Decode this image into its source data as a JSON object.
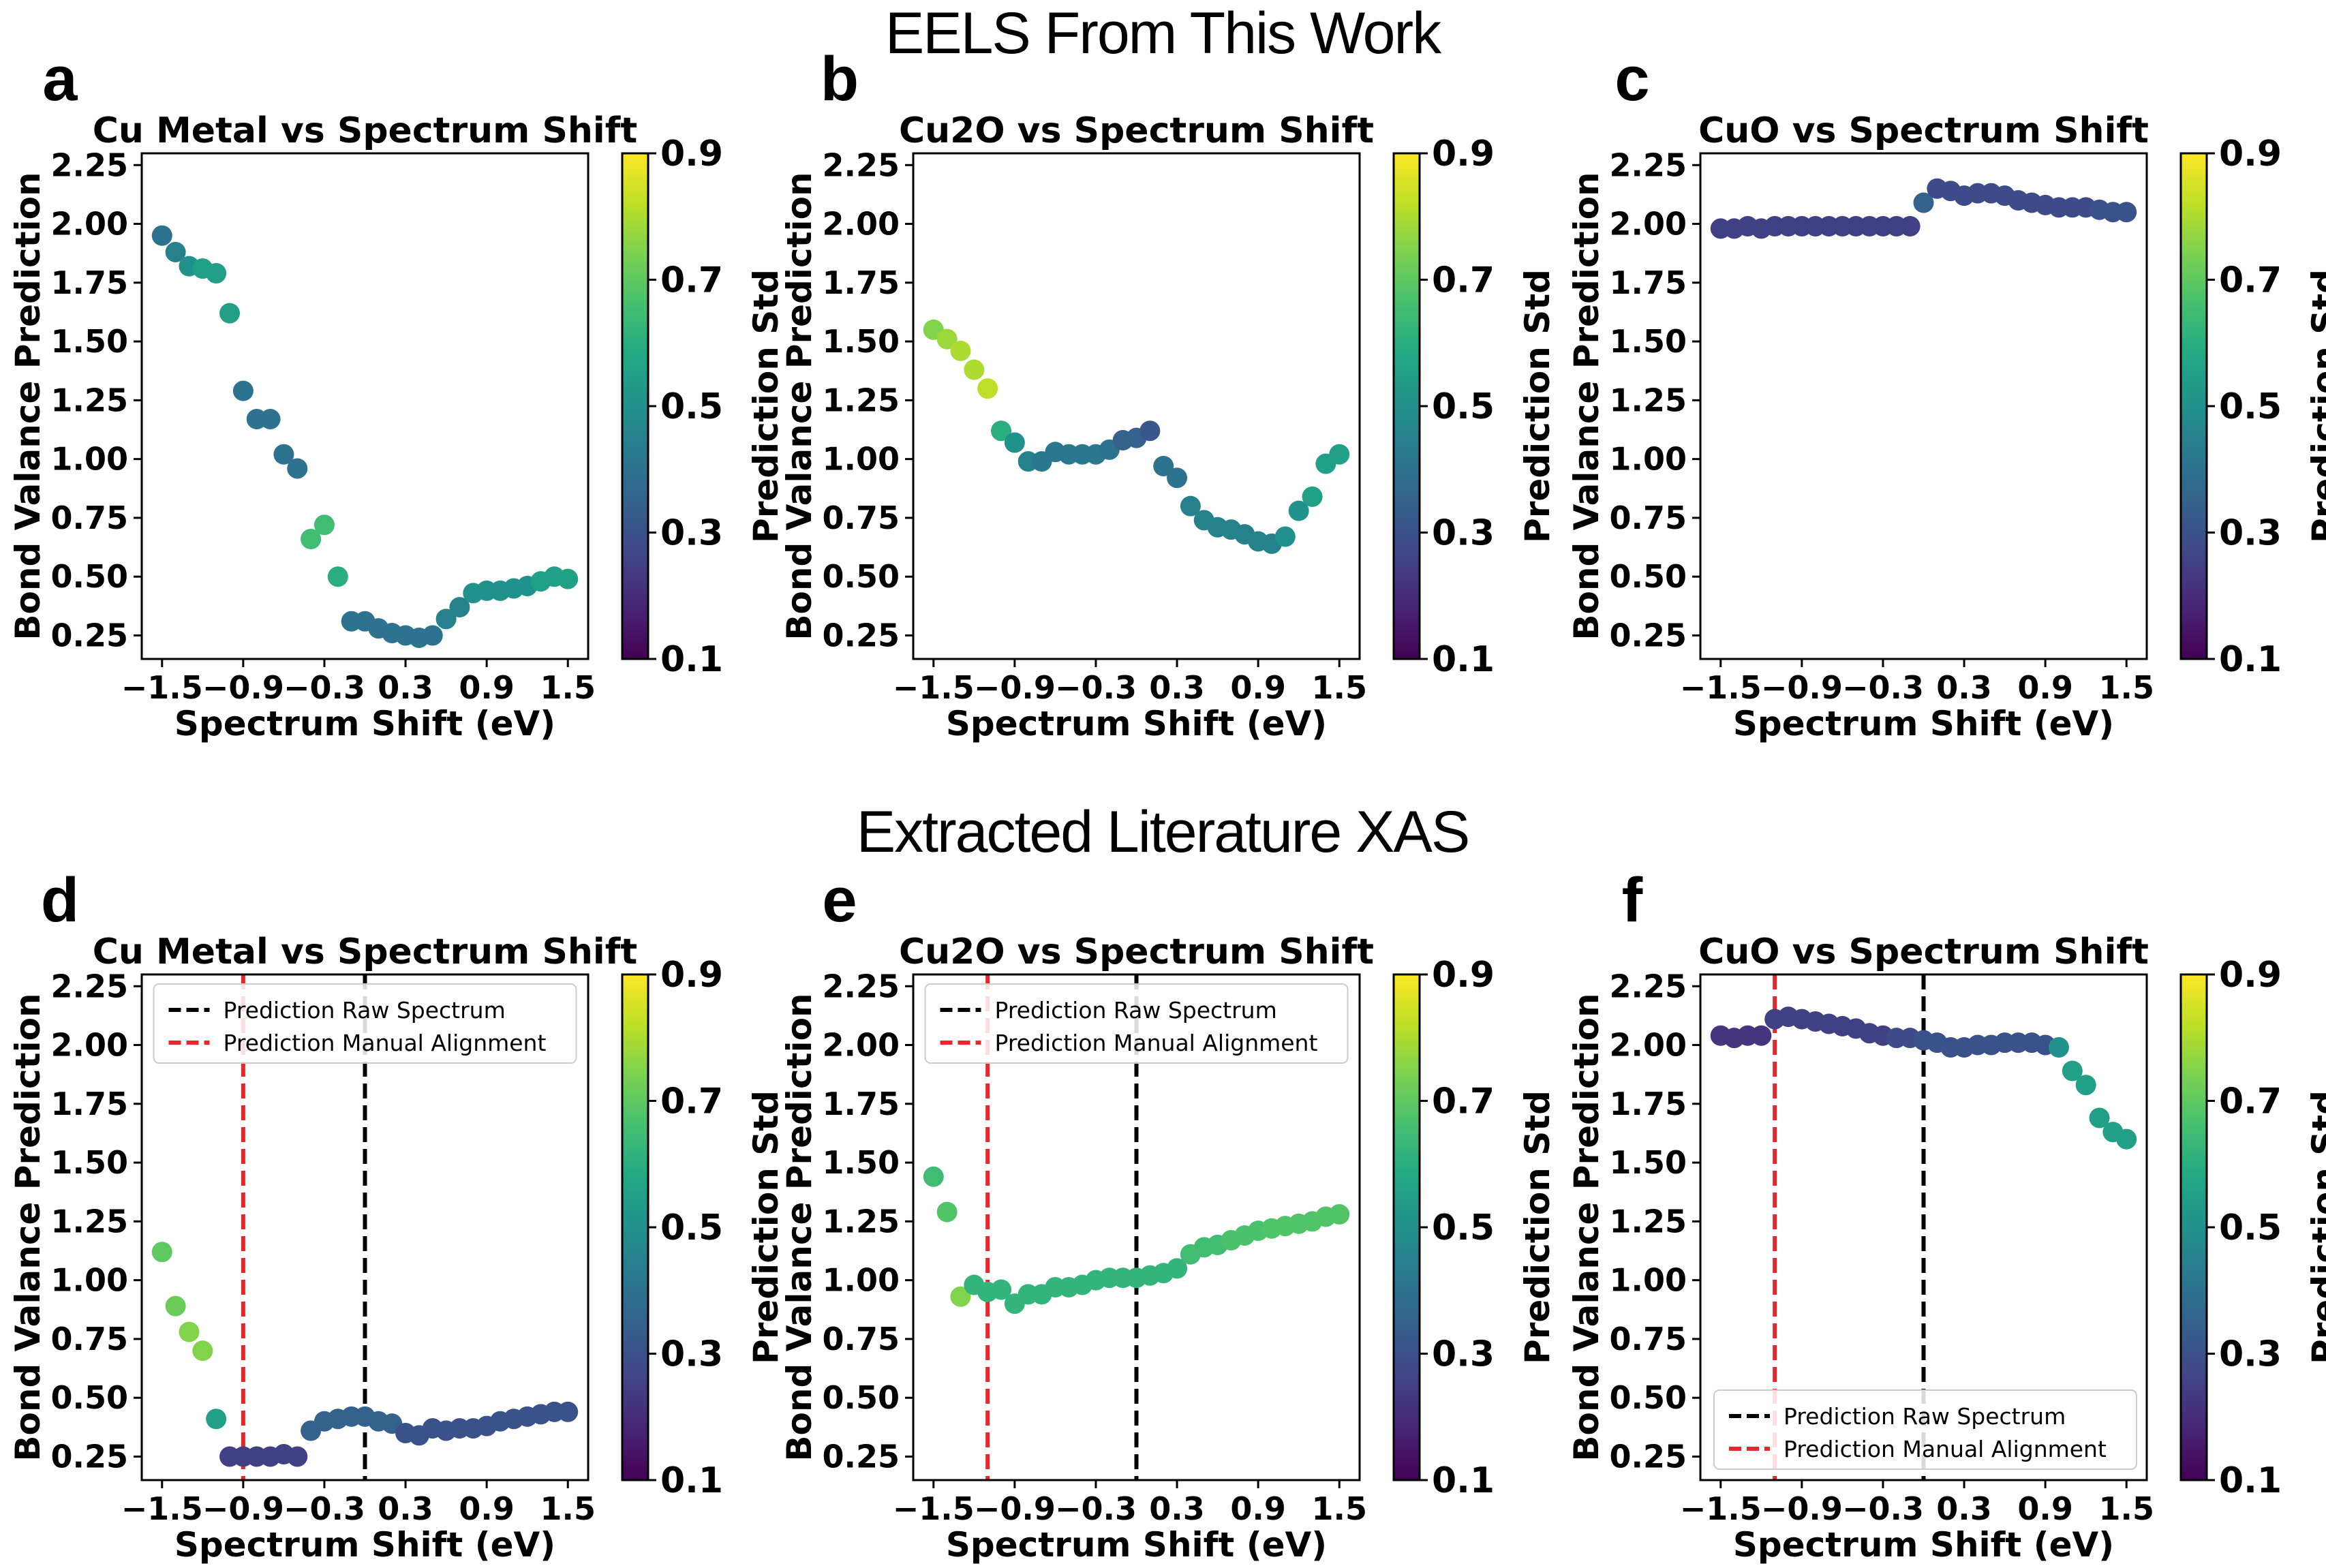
{
  "sections": [
    {
      "title": "EELS From This Work"
    },
    {
      "title": "Extracted Literature XAS"
    }
  ],
  "colorbar": {
    "label": "Prediction Std",
    "ticks": [
      "0.1",
      "0.3",
      "0.5",
      "0.7",
      "0.9"
    ],
    "range": [
      0.1,
      0.9
    ],
    "colormap": "viridis"
  },
  "legend": {
    "raw": {
      "label": "Prediction Raw Spectrum",
      "color": "#000000"
    },
    "manual": {
      "label": "Prediction Manual Alignment",
      "color": "#e8262b"
    }
  },
  "chart_data": [
    {
      "panel": "a",
      "type": "scatter",
      "title": "Cu Metal vs Spectrum Shift",
      "xlabel": "Spectrum Shift (eV)",
      "ylabel": "Bond Valance Prediction",
      "xlim": [
        -1.65,
        1.65
      ],
      "ylim": [
        0.15,
        2.3
      ],
      "xticks": [
        "−1.5",
        "−0.9",
        "−0.3",
        "0.3",
        "0.9",
        "1.5"
      ],
      "yticks": [
        "0.25",
        "0.50",
        "0.75",
        "1.00",
        "1.25",
        "1.50",
        "1.75",
        "2.00",
        "2.25"
      ],
      "x": [
        -1.5,
        -1.4,
        -1.3,
        -1.2,
        -1.1,
        -1.0,
        -0.9,
        -0.8,
        -0.7,
        -0.6,
        -0.5,
        -0.4,
        -0.3,
        -0.2,
        -0.1,
        0.0,
        0.1,
        0.2,
        0.3,
        0.4,
        0.5,
        0.6,
        0.7,
        0.8,
        0.9,
        1.0,
        1.1,
        1.2,
        1.3,
        1.4,
        1.5
      ],
      "y": [
        1.95,
        1.88,
        1.82,
        1.81,
        1.79,
        1.62,
        1.29,
        1.17,
        1.17,
        1.02,
        0.96,
        0.66,
        0.72,
        0.5,
        0.31,
        0.31,
        0.28,
        0.26,
        0.25,
        0.24,
        0.25,
        0.32,
        0.37,
        0.43,
        0.44,
        0.44,
        0.45,
        0.46,
        0.48,
        0.5,
        0.49
      ],
      "std": [
        0.4,
        0.45,
        0.5,
        0.55,
        0.55,
        0.55,
        0.4,
        0.4,
        0.4,
        0.4,
        0.4,
        0.65,
        0.65,
        0.6,
        0.4,
        0.4,
        0.4,
        0.4,
        0.4,
        0.4,
        0.4,
        0.45,
        0.45,
        0.5,
        0.5,
        0.5,
        0.5,
        0.5,
        0.55,
        0.55,
        0.55
      ],
      "legend": false
    },
    {
      "panel": "b",
      "type": "scatter",
      "title": "Cu2O vs Spectrum Shift",
      "xlabel": "Spectrum Shift (eV)",
      "ylabel": "Bond Valance Prediction",
      "xlim": [
        -1.65,
        1.65
      ],
      "ylim": [
        0.15,
        2.3
      ],
      "xticks": [
        "−1.5",
        "−0.9",
        "−0.3",
        "0.3",
        "0.9",
        "1.5"
      ],
      "yticks": [
        "0.25",
        "0.50",
        "0.75",
        "1.00",
        "1.25",
        "1.50",
        "1.75",
        "2.00",
        "2.25"
      ],
      "x": [
        -1.5,
        -1.4,
        -1.3,
        -1.2,
        -1.1,
        -1.0,
        -0.9,
        -0.8,
        -0.7,
        -0.6,
        -0.5,
        -0.4,
        -0.3,
        -0.2,
        -0.1,
        0.0,
        0.1,
        0.2,
        0.3,
        0.4,
        0.5,
        0.6,
        0.7,
        0.8,
        0.9,
        1.0,
        1.1,
        1.2,
        1.3,
        1.4,
        1.5
      ],
      "y": [
        1.55,
        1.51,
        1.46,
        1.38,
        1.3,
        1.12,
        1.07,
        0.99,
        0.99,
        1.03,
        1.02,
        1.02,
        1.02,
        1.04,
        1.08,
        1.09,
        1.12,
        0.97,
        0.92,
        0.8,
        0.74,
        0.71,
        0.7,
        0.68,
        0.65,
        0.64,
        0.67,
        0.78,
        0.84,
        0.98,
        1.02
      ],
      "std": [
        0.75,
        0.78,
        0.8,
        0.8,
        0.82,
        0.6,
        0.5,
        0.45,
        0.42,
        0.42,
        0.42,
        0.42,
        0.42,
        0.4,
        0.35,
        0.35,
        0.32,
        0.4,
        0.4,
        0.45,
        0.45,
        0.45,
        0.45,
        0.45,
        0.45,
        0.45,
        0.5,
        0.5,
        0.55,
        0.55,
        0.55
      ],
      "legend": false
    },
    {
      "panel": "c",
      "type": "scatter",
      "title": "CuO vs Spectrum Shift",
      "xlabel": "Spectrum Shift (eV)",
      "ylabel": "Bond Valance Prediction",
      "xlim": [
        -1.65,
        1.65
      ],
      "ylim": [
        0.15,
        2.3
      ],
      "xticks": [
        "−1.5",
        "−0.9",
        "−0.3",
        "0.3",
        "0.9",
        "1.5"
      ],
      "yticks": [
        "0.25",
        "0.50",
        "0.75",
        "1.00",
        "1.25",
        "1.50",
        "1.75",
        "2.00",
        "2.25"
      ],
      "x": [
        -1.5,
        -1.4,
        -1.3,
        -1.2,
        -1.1,
        -1.0,
        -0.9,
        -0.8,
        -0.7,
        -0.6,
        -0.5,
        -0.4,
        -0.3,
        -0.2,
        -0.1,
        0.0,
        0.1,
        0.2,
        0.3,
        0.4,
        0.5,
        0.6,
        0.7,
        0.8,
        0.9,
        1.0,
        1.1,
        1.2,
        1.3,
        1.4,
        1.5
      ],
      "y": [
        1.98,
        1.98,
        1.99,
        1.98,
        1.99,
        1.99,
        1.99,
        1.99,
        1.99,
        1.99,
        1.99,
        1.99,
        1.99,
        1.99,
        1.99,
        2.09,
        2.15,
        2.14,
        2.12,
        2.13,
        2.13,
        2.12,
        2.1,
        2.09,
        2.08,
        2.07,
        2.07,
        2.07,
        2.06,
        2.05,
        2.05
      ],
      "std": [
        0.25,
        0.25,
        0.25,
        0.25,
        0.25,
        0.25,
        0.25,
        0.25,
        0.25,
        0.25,
        0.25,
        0.25,
        0.25,
        0.25,
        0.25,
        0.35,
        0.28,
        0.28,
        0.28,
        0.28,
        0.28,
        0.28,
        0.28,
        0.28,
        0.28,
        0.28,
        0.28,
        0.28,
        0.3,
        0.3,
        0.3
      ],
      "legend": false
    },
    {
      "panel": "d",
      "type": "scatter",
      "title": "Cu Metal vs Spectrum Shift",
      "xlabel": "Spectrum Shift (eV)",
      "ylabel": "Bond Valance Prediction",
      "xlim": [
        -1.65,
        1.65
      ],
      "ylim": [
        0.15,
        2.3
      ],
      "xticks": [
        "−1.5",
        "−0.9",
        "−0.3",
        "0.3",
        "0.9",
        "1.5"
      ],
      "yticks": [
        "0.25",
        "0.50",
        "0.75",
        "1.00",
        "1.25",
        "1.50",
        "1.75",
        "2.00",
        "2.25"
      ],
      "x": [
        -1.5,
        -1.4,
        -1.3,
        -1.2,
        -1.1,
        -1.0,
        -0.9,
        -0.8,
        -0.7,
        -0.6,
        -0.5,
        -0.4,
        -0.3,
        -0.2,
        -0.1,
        0.0,
        0.1,
        0.2,
        0.3,
        0.4,
        0.5,
        0.6,
        0.7,
        0.8,
        0.9,
        1.0,
        1.1,
        1.2,
        1.3,
        1.4,
        1.5
      ],
      "y": [
        1.12,
        0.89,
        0.78,
        0.7,
        0.41,
        0.25,
        0.25,
        0.25,
        0.25,
        0.26,
        0.25,
        0.36,
        0.4,
        0.41,
        0.42,
        0.42,
        0.4,
        0.39,
        0.35,
        0.34,
        0.37,
        0.36,
        0.37,
        0.37,
        0.38,
        0.4,
        0.41,
        0.42,
        0.43,
        0.44,
        0.44
      ],
      "std": [
        0.7,
        0.72,
        0.75,
        0.75,
        0.55,
        0.25,
        0.25,
        0.25,
        0.25,
        0.25,
        0.25,
        0.35,
        0.35,
        0.35,
        0.35,
        0.35,
        0.35,
        0.35,
        0.3,
        0.3,
        0.3,
        0.3,
        0.3,
        0.3,
        0.3,
        0.3,
        0.3,
        0.3,
        0.3,
        0.3,
        0.3
      ],
      "vlines": {
        "raw": 0.0,
        "manual": -0.9
      },
      "legend": "upper-center"
    },
    {
      "panel": "e",
      "type": "scatter",
      "title": "Cu2O vs Spectrum Shift",
      "xlabel": "Spectrum Shift (eV)",
      "ylabel": "Bond Valance Prediction",
      "xlim": [
        -1.65,
        1.65
      ],
      "ylim": [
        0.15,
        2.3
      ],
      "xticks": [
        "−1.5",
        "−0.9",
        "−0.3",
        "0.3",
        "0.9",
        "1.5"
      ],
      "yticks": [
        "0.25",
        "0.50",
        "0.75",
        "1.00",
        "1.25",
        "1.50",
        "1.75",
        "2.00",
        "2.25"
      ],
      "x": [
        -1.5,
        -1.4,
        -1.3,
        -1.2,
        -1.1,
        -1.0,
        -0.9,
        -0.8,
        -0.7,
        -0.6,
        -0.5,
        -0.4,
        -0.3,
        -0.2,
        -0.1,
        0.0,
        0.1,
        0.2,
        0.3,
        0.4,
        0.5,
        0.6,
        0.7,
        0.8,
        0.9,
        1.0,
        1.1,
        1.2,
        1.3,
        1.4,
        1.5
      ],
      "y": [
        1.44,
        1.29,
        0.93,
        0.98,
        0.95,
        0.96,
        0.9,
        0.94,
        0.94,
        0.97,
        0.97,
        0.98,
        1.0,
        1.01,
        1.01,
        1.01,
        1.02,
        1.03,
        1.05,
        1.11,
        1.14,
        1.15,
        1.17,
        1.19,
        1.21,
        1.22,
        1.23,
        1.24,
        1.25,
        1.27,
        1.28
      ],
      "std": [
        0.65,
        0.68,
        0.75,
        0.62,
        0.62,
        0.62,
        0.62,
        0.62,
        0.62,
        0.62,
        0.62,
        0.62,
        0.62,
        0.62,
        0.62,
        0.62,
        0.62,
        0.62,
        0.62,
        0.65,
        0.65,
        0.65,
        0.67,
        0.67,
        0.67,
        0.68,
        0.68,
        0.68,
        0.68,
        0.68,
        0.68
      ],
      "vlines": {
        "raw": 0.0,
        "manual": -1.1
      },
      "legend": "upper-center"
    },
    {
      "panel": "f",
      "type": "scatter",
      "title": "CuO vs Spectrum Shift",
      "xlabel": "Spectrum Shift (eV)",
      "ylabel": "Bond Valance Prediction",
      "xlim": [
        -1.65,
        1.65
      ],
      "ylim": [
        0.15,
        2.3
      ],
      "xticks": [
        "−1.5",
        "−0.9",
        "−0.3",
        "0.3",
        "0.9",
        "1.5"
      ],
      "yticks": [
        "0.25",
        "0.50",
        "0.75",
        "1.00",
        "1.25",
        "1.50",
        "1.75",
        "2.00",
        "2.25"
      ],
      "x": [
        -1.5,
        -1.4,
        -1.3,
        -1.2,
        -1.1,
        -1.0,
        -0.9,
        -0.8,
        -0.7,
        -0.6,
        -0.5,
        -0.4,
        -0.3,
        -0.2,
        -0.1,
        0.0,
        0.1,
        0.2,
        0.3,
        0.4,
        0.5,
        0.6,
        0.7,
        0.8,
        0.9,
        1.0,
        1.1,
        1.2,
        1.3,
        1.4,
        1.5
      ],
      "y": [
        2.04,
        2.03,
        2.04,
        2.04,
        2.11,
        2.12,
        2.11,
        2.1,
        2.09,
        2.08,
        2.07,
        2.05,
        2.04,
        2.03,
        2.03,
        2.02,
        2.01,
        1.99,
        1.99,
        2.0,
        2.0,
        2.01,
        2.01,
        2.01,
        2.0,
        1.99,
        1.89,
        1.83,
        1.69,
        1.63,
        1.6
      ],
      "std": [
        0.22,
        0.22,
        0.22,
        0.22,
        0.25,
        0.25,
        0.25,
        0.25,
        0.25,
        0.25,
        0.25,
        0.25,
        0.25,
        0.28,
        0.28,
        0.3,
        0.3,
        0.3,
        0.3,
        0.3,
        0.3,
        0.3,
        0.3,
        0.3,
        0.3,
        0.5,
        0.55,
        0.55,
        0.55,
        0.55,
        0.55
      ],
      "vlines": {
        "raw": 0.0,
        "manual": -1.1
      },
      "legend": "lower-left"
    }
  ]
}
